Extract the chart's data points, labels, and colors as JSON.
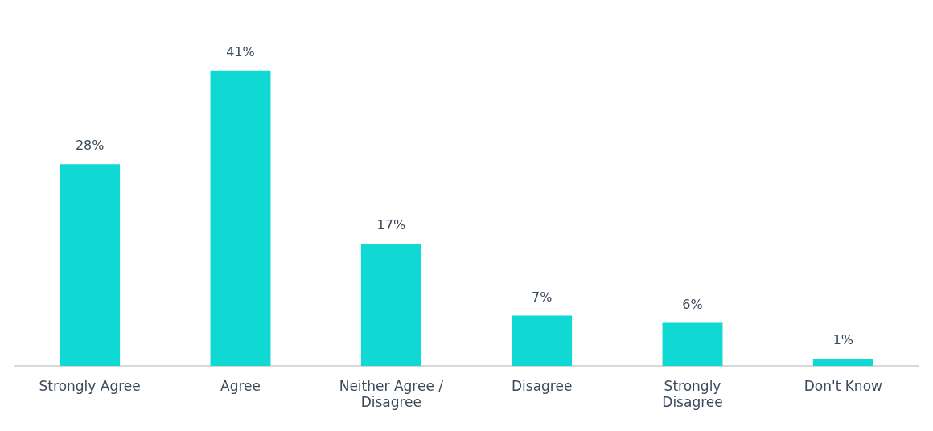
{
  "chart_data": {
    "type": "bar",
    "categories": [
      "Strongly Agree",
      "Agree",
      "Neither Agree / Disagree",
      "Disagree",
      "Strongly Disagree",
      "Don't Know"
    ],
    "values": [
      28,
      41,
      17,
      7,
      6,
      1
    ],
    "value_labels": [
      "28%",
      "41%",
      "17%",
      "7%",
      "6%",
      "1%"
    ],
    "color": "#10d9d4",
    "grid": false,
    "legend": false
  }
}
